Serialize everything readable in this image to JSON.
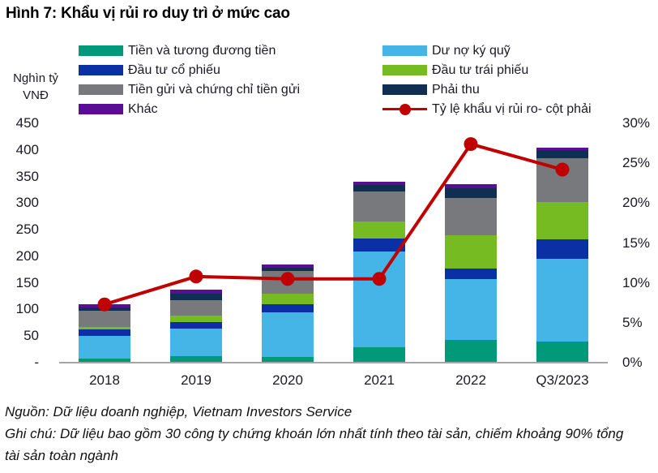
{
  "footer": {
    "source": "Nguồn: Dữ liệu doanh nghiệp, Vietnam Investors Service",
    "note": "Ghi chú: Dữ liệu bao gồm 30 công ty chứng khoán lớn nhất tính theo tài sản, chiếm khoảng 90% tổng tài sản toàn ngành"
  },
  "chart_data": {
    "type": "bar",
    "stacked": true,
    "title": "Hình 7: Khẩu vị rủi ro duy trì ở mức cao",
    "categories": [
      "2018",
      "2019",
      "2020",
      "2021",
      "2022",
      "Q3/2023"
    ],
    "series": [
      {
        "name": "Tiền và tương đương tiền",
        "color": "#00997a",
        "values": [
          8,
          12,
          11,
          29,
          42,
          39
        ]
      },
      {
        "name": "Dư nợ ký quỹ",
        "color": "#45b5e8",
        "values": [
          42,
          52,
          84,
          180,
          115,
          156
        ]
      },
      {
        "name": "Đầu tư cổ phiếu",
        "color": "#0b2fa5",
        "values": [
          13,
          13,
          15,
          25,
          20,
          37
        ]
      },
      {
        "name": "Đầu tư trái phiếu",
        "color": "#76bb21",
        "values": [
          4,
          12,
          19,
          31,
          62,
          70
        ]
      },
      {
        "name": "Tiền gửi và chứng chỉ tiền gửi",
        "color": "#77797c",
        "values": [
          30,
          29,
          44,
          57,
          70,
          83
        ]
      },
      {
        "name": "Phải thu",
        "color": "#102e52",
        "values": [
          6,
          11,
          6,
          12,
          19,
          14
        ]
      },
      {
        "name": "Khác",
        "color": "#5a0e96",
        "values": [
          7,
          8,
          6,
          6,
          7,
          5
        ]
      }
    ],
    "bar_totals": [
      110,
      137,
      185,
      340,
      335,
      404
    ],
    "line_series": {
      "name": "Tỷ lệ khẩu vị rủi ro- cột phải",
      "color": "#c00000",
      "values_pct": [
        7.3,
        10.8,
        10.5,
        10.5,
        27.4,
        24.2
      ]
    },
    "left_axis": {
      "unit_lines": [
        "Nghìn tỷ",
        "VNĐ"
      ],
      "ticks": [
        "450",
        "400",
        "350",
        "300",
        "250",
        "200",
        "150",
        "100",
        "50",
        "-"
      ],
      "min": 0,
      "max": 450,
      "step": 50
    },
    "right_axis": {
      "ticks": [
        "30%",
        "25%",
        "20%",
        "15%",
        "10%",
        "5%",
        "0%"
      ],
      "min": 0,
      "max": 30,
      "step": 5
    },
    "legend_position": "top-two-columns",
    "grid": false
  }
}
